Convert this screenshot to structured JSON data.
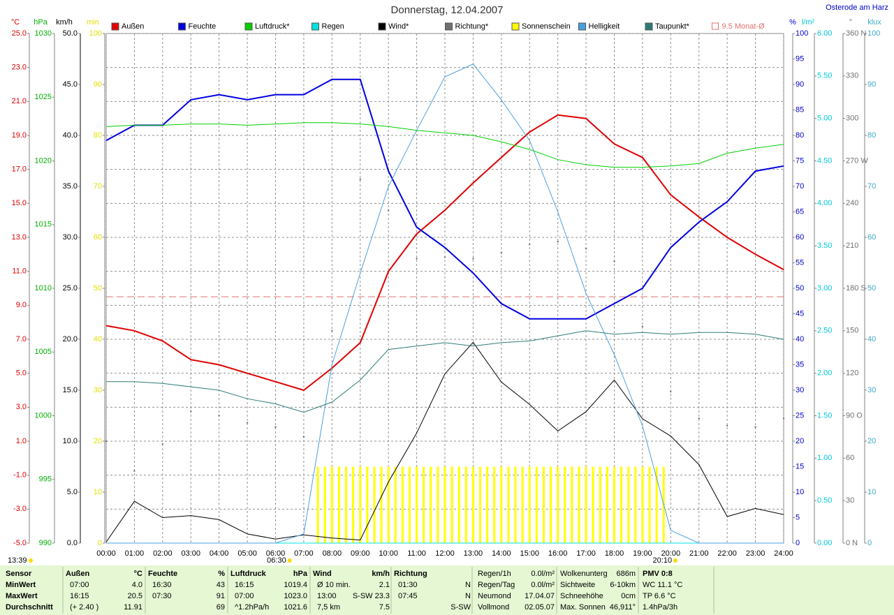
{
  "chart_data": {
    "type": "line",
    "title": "Donnerstag, 12.04.2007",
    "location": "Osterode am Harz",
    "grid": true,
    "x": [
      0,
      1,
      2,
      3,
      4,
      5,
      6,
      7,
      8,
      9,
      10,
      11,
      12,
      13,
      14,
      15,
      16,
      17,
      18,
      19,
      20,
      21,
      22,
      23,
      24
    ],
    "xlim": [
      0,
      24
    ],
    "xticks": [
      {
        "value": 0,
        "label": "00:00"
      },
      {
        "value": 1,
        "label": "01:00"
      },
      {
        "value": 2,
        "label": "02:00"
      },
      {
        "value": 3,
        "label": "03:00"
      },
      {
        "value": 4,
        "label": "04:00"
      },
      {
        "value": 5,
        "label": "05:00"
      },
      {
        "value": 6,
        "label": "06:00"
      },
      {
        "value": 7,
        "label": "07:00"
      },
      {
        "value": 8,
        "label": "08:00"
      },
      {
        "value": 9,
        "label": "09:00"
      },
      {
        "value": 10,
        "label": "10:00"
      },
      {
        "value": 11,
        "label": "11:00"
      },
      {
        "value": 12,
        "label": "12:00"
      },
      {
        "value": 13,
        "label": "13:00"
      },
      {
        "value": 14,
        "label": "14:00"
      },
      {
        "value": 15,
        "label": "15:00"
      },
      {
        "value": 16,
        "label": "16:00"
      },
      {
        "value": 17,
        "label": "17:00"
      },
      {
        "value": 18,
        "label": "18:00"
      },
      {
        "value": 19,
        "label": "19:00"
      },
      {
        "value": 20,
        "label": "20:00"
      },
      {
        "value": 21,
        "label": "21:00"
      },
      {
        "value": 22,
        "label": "22:00"
      },
      {
        "value": 23,
        "label": "23:00"
      },
      {
        "value": 24,
        "label": "24:00"
      }
    ],
    "axes": [
      {
        "label": "°C",
        "color": "#e00000",
        "ylim": [
          -5,
          25
        ],
        "yticks": [
          {
            "value": 25,
            "label": "25.0"
          },
          {
            "value": 23,
            "label": "23.0"
          },
          {
            "value": 21,
            "label": "21.0"
          },
          {
            "value": 19,
            "label": "19.0"
          },
          {
            "value": 17,
            "label": "17.0"
          },
          {
            "value": 15,
            "label": "15.0"
          },
          {
            "value": 13,
            "label": "13.0"
          },
          {
            "value": 11,
            "label": "11.0"
          },
          {
            "value": 9,
            "label": "9.0"
          },
          {
            "value": 7,
            "label": "7.0"
          },
          {
            "value": 5,
            "label": "5.0"
          },
          {
            "value": 3,
            "label": "3.0"
          },
          {
            "value": 1,
            "label": "1.0"
          },
          {
            "value": -1,
            "label": "-1.0"
          },
          {
            "value": -3,
            "label": "-3.0"
          },
          {
            "value": -5,
            "label": "-5.0"
          }
        ]
      },
      {
        "label": "hPa",
        "color": "#00b000",
        "ylim": [
          990,
          1030
        ],
        "yticks": [
          1030,
          1025,
          1020,
          1015,
          1010,
          1005,
          1000,
          995,
          990
        ]
      },
      {
        "label": "km/h",
        "color": "#000000",
        "ylim": [
          0,
          50
        ],
        "yticks": [
          {
            "value": 50,
            "label": "50.0"
          },
          {
            "value": 45,
            "label": "45.0"
          },
          {
            "value": 40,
            "label": "40.0"
          },
          {
            "value": 35,
            "label": "35.0"
          },
          {
            "value": 30,
            "label": "30.0"
          },
          {
            "value": 25,
            "label": "25.0"
          },
          {
            "value": 20,
            "label": "20.0"
          },
          {
            "value": 15,
            "label": "15.0"
          },
          {
            "value": 10,
            "label": "10.0"
          },
          {
            "value": 5,
            "label": "5.0"
          },
          {
            "value": 0,
            "label": "0.0"
          }
        ]
      },
      {
        "label": "min",
        "color": "#e0e000",
        "ylim": [
          0,
          100
        ],
        "yticks": [
          100,
          90,
          80,
          70,
          60,
          50,
          40,
          30,
          20,
          10,
          0
        ]
      },
      {
        "label": "%",
        "color": "#0000d0",
        "ylim": [
          0,
          100
        ],
        "yticks": [
          100,
          95,
          90,
          85,
          80,
          75,
          70,
          65,
          60,
          55,
          50,
          45,
          40,
          35,
          30,
          25,
          20,
          15,
          10,
          5,
          0
        ]
      },
      {
        "label": "l/m²",
        "color": "#00c8d8",
        "ylim": [
          0,
          6
        ],
        "yticks": [
          {
            "value": 6,
            "label": "6.00"
          },
          {
            "value": 5.5,
            "label": "5.50"
          },
          {
            "value": 5,
            "label": "5.00"
          },
          {
            "value": 4.5,
            "label": "4.50"
          },
          {
            "value": 4,
            "label": "4.00"
          },
          {
            "value": 3.5,
            "label": "3.50"
          },
          {
            "value": 3,
            "label": "3.00"
          },
          {
            "value": 2.5,
            "label": "2.50"
          },
          {
            "value": 2,
            "label": "2.00"
          },
          {
            "value": 1.5,
            "label": "1.50"
          },
          {
            "value": 1,
            "label": "1.00"
          },
          {
            "value": 0.5,
            "label": "0.50"
          },
          {
            "value": 0,
            "label": "0.00"
          }
        ]
      },
      {
        "label": "°",
        "color": "#707070",
        "ylim": [
          0,
          360
        ],
        "yticks": [
          {
            "value": 360,
            "label": "360 N"
          },
          330,
          300,
          {
            "value": 270,
            "label": "270 W"
          },
          240,
          210,
          {
            "value": 180,
            "label": "180 S"
          },
          150,
          120,
          {
            "value": 90,
            "label": "90 O"
          },
          60,
          30,
          {
            "value": 0,
            "label": "0 N"
          }
        ]
      },
      {
        "label": "klux",
        "color": "#40a8c8",
        "ylim": [
          0,
          100
        ],
        "yticks": [
          100,
          90,
          80,
          70,
          60,
          50,
          40,
          30,
          20,
          10,
          0
        ]
      }
    ],
    "series": [
      {
        "name": "Außen",
        "type": "line",
        "axis": 0,
        "color": "#e00000",
        "width": 2,
        "values": [
          7.8,
          7.5,
          6.9,
          5.8,
          5.5,
          5.0,
          4.5,
          4.0,
          5.3,
          6.8,
          11.0,
          13.2,
          14.6,
          16.2,
          17.7,
          19.2,
          20.2,
          20.0,
          18.5,
          17.7,
          15.5,
          14.2,
          13.0,
          12.0,
          11.1
        ]
      },
      {
        "name": "Feuchte",
        "type": "line",
        "axis": 4,
        "color": "#0000e0",
        "width": 2,
        "values": [
          79,
          82,
          82,
          87,
          88,
          87,
          88,
          88,
          91,
          91,
          73,
          62,
          58,
          53,
          47,
          44,
          44,
          44,
          47,
          50,
          58,
          63,
          67,
          73,
          74
        ]
      },
      {
        "name": "Luftdruck*",
        "type": "line",
        "axis": 1,
        "color": "#00d000",
        "width": 1,
        "values": [
          1022.7,
          1022.8,
          1022.8,
          1022.9,
          1022.9,
          1022.8,
          1022.9,
          1023.0,
          1023.0,
          1022.9,
          1022.7,
          1022.4,
          1022.2,
          1022.0,
          1021.5,
          1020.9,
          1020.1,
          1019.7,
          1019.5,
          1019.5,
          1019.6,
          1019.8,
          1020.6,
          1021.0,
          1021.3
        ]
      },
      {
        "name": "Regen",
        "type": "line",
        "axis": 5,
        "color": "#00e0e0",
        "width": 1,
        "values": [
          0,
          0,
          0,
          0,
          0,
          0,
          0,
          0,
          0,
          0,
          0,
          0,
          0,
          0,
          0,
          0,
          0,
          0,
          0,
          0,
          0,
          0,
          0,
          0,
          0
        ]
      },
      {
        "name": "Wind*",
        "type": "line",
        "axis": 2,
        "color": "#000000",
        "width": 1,
        "values": [
          0.1,
          4.1,
          2.5,
          2.7,
          2.3,
          0.9,
          0.4,
          0.8,
          0.5,
          0.3,
          6.0,
          10.8,
          16.6,
          19.7,
          15.8,
          13.6,
          11.0,
          12.9,
          16.0,
          12.2,
          10.5,
          7.7,
          2.6,
          3.4,
          2.8
        ]
      },
      {
        "name": "Richtung*",
        "type": "scatter",
        "axis": 6,
        "color": "#707070",
        "width": 1,
        "values": [
          72,
          51,
          70,
          93,
          90,
          85,
          82,
          75,
          150,
          257,
          235,
          201,
          202,
          201,
          205,
          211,
          213,
          208,
          199,
          153,
          107,
          88,
          83,
          82,
          88
        ]
      },
      {
        "name": "Sonnenschein",
        "type": "bar",
        "axis": 3,
        "color": "#ffff00",
        "width": 3,
        "x": [
          7.5,
          7.75,
          8,
          8.25,
          8.5,
          8.75,
          9,
          9.25,
          9.5,
          9.75,
          10,
          10.25,
          10.5,
          10.75,
          11,
          11.25,
          11.5,
          11.75,
          12,
          12.25,
          12.5,
          12.75,
          13,
          13.25,
          13.5,
          13.75,
          14,
          14.25,
          14.5,
          14.75,
          15,
          15.25,
          15.5,
          15.75,
          16,
          16.25,
          16.5,
          16.75,
          17,
          17.25,
          17.5,
          17.75,
          18,
          18.25,
          18.5,
          18.75,
          19,
          19.25,
          19.5,
          19.75
        ],
        "values": [
          15,
          15,
          15,
          15,
          15,
          15,
          15,
          15,
          15,
          15,
          15,
          15,
          15,
          15,
          15,
          15,
          15,
          15,
          15,
          15,
          15,
          15,
          15,
          15,
          15,
          15,
          15,
          15,
          15,
          15,
          15,
          15,
          15,
          15,
          15,
          15,
          15,
          15,
          15,
          15,
          15,
          15,
          15,
          15,
          15,
          15,
          15,
          15,
          15,
          15
        ]
      },
      {
        "name": "Helligkeit",
        "type": "line",
        "axis": 7,
        "color": "#4aa0e0",
        "width": 1,
        "values": [
          0,
          0,
          0,
          0,
          0,
          0,
          0,
          1.8,
          35,
          53,
          70,
          81,
          91.5,
          94,
          87,
          79,
          65,
          49,
          37,
          23,
          2.5,
          0,
          0,
          0,
          0
        ]
      },
      {
        "name": "Taupunkt*",
        "type": "line",
        "axis": 0,
        "color": "#2e7a78",
        "width": 1,
        "values": [
          4.5,
          4.5,
          4.4,
          4.2,
          4.0,
          3.5,
          3.2,
          2.7,
          3.3,
          4.6,
          6.4,
          6.6,
          6.8,
          6.6,
          6.8,
          6.9,
          7.2,
          7.5,
          7.3,
          7.4,
          7.3,
          7.4,
          7.4,
          7.3,
          7.0
        ]
      }
    ],
    "reference": {
      "label": "9.5 Monat-Ø",
      "value": 9.5,
      "axis": 0,
      "color": "#e07070"
    },
    "markers": [
      {
        "x": 6.5,
        "label": "06:30"
      },
      {
        "x": 20.1667,
        "label": "20:10"
      }
    ],
    "time": "13:39"
  },
  "footer": {
    "labels": [
      "Sensor",
      "MinWert",
      "MaxWert",
      "Durchschnitt"
    ],
    "sections": [
      {
        "header": [
          "Außen",
          "°C"
        ],
        "rows": [
          [
            "07:00",
            "4.0"
          ],
          [
            "16:15",
            "20.5"
          ],
          [
            "(+ 2.40 )",
            "11.91"
          ]
        ]
      },
      {
        "header": [
          "Feuchte",
          "%"
        ],
        "rows": [
          [
            "16:30",
            "43"
          ],
          [
            "07:30",
            "91"
          ],
          [
            null,
            "69"
          ]
        ]
      },
      {
        "header": [
          "Luftdruck",
          "hPa"
        ],
        "rows": [
          [
            "16:15",
            "1019.4"
          ],
          [
            "07:00",
            "1023.0"
          ],
          [
            "^1.2hPa/h",
            "1021.6"
          ]
        ]
      },
      {
        "header": [
          "Wind",
          "km/h"
        ],
        "rows": [
          [
            "Ø 10 min.",
            "2.1"
          ],
          [
            "13:00",
            "S-SW 23.3"
          ],
          [
            "7,5 km",
            "7.5"
          ]
        ]
      },
      {
        "header": [
          "Richtung",
          null
        ],
        "rows": [
          [
            "01:30",
            "N"
          ],
          [
            "07:45",
            "N"
          ],
          [
            null,
            "S-SW"
          ]
        ]
      }
    ],
    "info": [
      [
        [
          "Regen/1h",
          "0.0l/m²"
        ],
        [
          "Regen/Tag",
          "0.0l/m²"
        ],
        [
          "Neumond",
          "17.04.07"
        ],
        [
          "Vollmond",
          "02.05.07"
        ]
      ],
      [
        [
          "Wolkenunterg",
          "686m"
        ],
        [
          "Sichtweite",
          "6-10km"
        ],
        [
          "Schneehöhe",
          "0cm"
        ],
        [
          "Max. Sonnen",
          "46,911°"
        ]
      ],
      [
        [
          "PMV 0:8"
        ],
        [
          "WC 11.1 °C"
        ],
        [
          "TP 6.6 °C"
        ],
        [
          "1.4hPa/3h"
        ]
      ]
    ]
  }
}
